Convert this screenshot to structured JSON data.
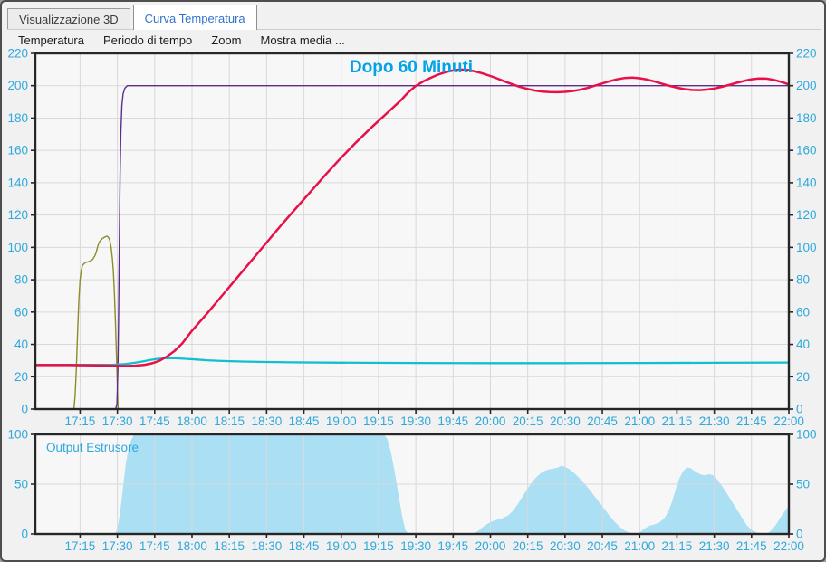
{
  "tabs": [
    {
      "label": "Visualizzazione 3D",
      "active": false
    },
    {
      "label": "Curva Temperatura",
      "active": true,
      "text_color": "#3272CE"
    }
  ],
  "menu": {
    "items": [
      "Temperatura",
      "Periodo di tempo",
      "Zoom",
      "Mostra media ..."
    ]
  },
  "colors": {
    "window_bg": "#f1f1f1",
    "axis_label_cyan": "#2FA8DC",
    "title_cyan": "#00A3E6",
    "red_line": "#E81048",
    "purple_line": "#5C2D8E",
    "olive_line": "#8B8C2A",
    "cyan_line": "#12BFCE",
    "area_fill": "#AADFF4",
    "border": "#262626",
    "grid": "#d9d9d9",
    "plot_bg": "#f7f7f7"
  },
  "chart_data": [
    {
      "id": "temperature",
      "type": "line",
      "title": "Dopo 60 Minuti",
      "title_color": "#00A3E6",
      "plot_bg": "#f7f7f7",
      "grid_color": "#d9d9d9",
      "border_color": "#262626",
      "label_color": "#2FA8DC",
      "xlim_minutes": [
        -3,
        300
      ],
      "ylim": [
        0,
        220
      ],
      "y_ticks": [
        0,
        20,
        40,
        60,
        80,
        100,
        120,
        140,
        160,
        180,
        200,
        220
      ],
      "grid_y": [
        20,
        40,
        60,
        80,
        100,
        120,
        140,
        160,
        180,
        200
      ],
      "x_ticks": [
        [
          15,
          "17:15"
        ],
        [
          30,
          "17:30"
        ],
        [
          45,
          "17:45"
        ],
        [
          60,
          "18:00"
        ],
        [
          75,
          "18:15"
        ],
        [
          90,
          "18:30"
        ],
        [
          105,
          "18:45"
        ],
        [
          120,
          "19:00"
        ],
        [
          135,
          "19:15"
        ],
        [
          150,
          "19:30"
        ],
        [
          165,
          "19:45"
        ],
        [
          180,
          "20:00"
        ],
        [
          195,
          "20:15"
        ],
        [
          210,
          "20:30"
        ],
        [
          225,
          "20:45"
        ],
        [
          240,
          "21:00"
        ],
        [
          255,
          "21:15"
        ],
        [
          270,
          "21:30"
        ],
        [
          285,
          "21:45"
        ],
        [
          300,
          "22:00"
        ]
      ],
      "series": [
        {
          "name": "startup_spike_olive",
          "color": "#8B8C2A",
          "width": 1.4,
          "points": [
            [
              12.5,
              0
            ],
            [
              13,
              8
            ],
            [
              13.5,
              25
            ],
            [
              14,
              48
            ],
            [
              14.5,
              68
            ],
            [
              15,
              80
            ],
            [
              15.5,
              86
            ],
            [
              16,
              89
            ],
            [
              17,
              90.5
            ],
            [
              18,
              91
            ],
            [
              19,
              91.5
            ],
            [
              20,
              92.5
            ],
            [
              21,
              95
            ],
            [
              21.5,
              97
            ],
            [
              22,
              100
            ],
            [
              22.5,
              102.5
            ],
            [
              23,
              104
            ],
            [
              24,
              105.5
            ],
            [
              25,
              106.5
            ],
            [
              25.8,
              107
            ],
            [
              26.5,
              106
            ],
            [
              27,
              104
            ],
            [
              27.5,
              100
            ],
            [
              28,
              93
            ],
            [
              28.4,
              85
            ],
            [
              28.8,
              72
            ],
            [
              29.2,
              55
            ],
            [
              29.6,
              35
            ],
            [
              30,
              14
            ],
            [
              30.3,
              0
            ]
          ]
        },
        {
          "name": "setpoint_purple",
          "color": "#5C2D8E",
          "width": 1.4,
          "points": [
            [
              -3,
              0
            ],
            [
              29.3,
              0
            ],
            [
              29.8,
              3
            ],
            [
              30.2,
              25
            ],
            [
              30.5,
              60
            ],
            [
              30.8,
              105
            ],
            [
              31.1,
              145
            ],
            [
              31.4,
              172
            ],
            [
              31.8,
              188
            ],
            [
              32.3,
              195
            ],
            [
              33,
              198.5
            ],
            [
              34,
              200
            ],
            [
              300,
              200
            ]
          ]
        },
        {
          "name": "ambient_cyan",
          "color": "#12BFCE",
          "width": 2.3,
          "points": [
            [
              -3,
              27.3
            ],
            [
              10,
              27.3
            ],
            [
              20,
              27.3
            ],
            [
              28,
              27.4
            ],
            [
              33,
              27.8
            ],
            [
              37,
              28.6
            ],
            [
              40,
              29.4
            ],
            [
              43,
              30.3
            ],
            [
              46,
              31
            ],
            [
              49,
              31.4
            ],
            [
              52,
              31.5
            ],
            [
              55,
              31.3
            ],
            [
              58,
              31
            ],
            [
              62,
              30.6
            ],
            [
              66,
              30.2
            ],
            [
              70,
              29.9
            ],
            [
              75,
              29.6
            ],
            [
              80,
              29.4
            ],
            [
              90,
              29.1
            ],
            [
              100,
              28.9
            ],
            [
              115,
              28.7
            ],
            [
              130,
              28.6
            ],
            [
              150,
              28.5
            ],
            [
              180,
              28.4
            ],
            [
              210,
              28.4
            ],
            [
              240,
              28.5
            ],
            [
              270,
              28.6
            ],
            [
              300,
              28.8
            ]
          ]
        },
        {
          "name": "temperature_red",
          "color": "#E81048",
          "width": 2.5,
          "points": [
            [
              -3,
              27.2
            ],
            [
              10,
              27.2
            ],
            [
              20,
              27
            ],
            [
              28,
              26.8
            ],
            [
              33,
              26.6
            ],
            [
              37,
              26.8
            ],
            [
              41,
              27.4
            ],
            [
              44,
              28.3
            ],
            [
              47,
              29.9
            ],
            [
              50,
              32.5
            ],
            [
              53,
              36
            ],
            [
              56,
              40.5
            ],
            [
              60,
              48.5
            ],
            [
              66,
              59
            ],
            [
              72,
              70
            ],
            [
              78,
              81
            ],
            [
              84,
              92
            ],
            [
              90,
              103
            ],
            [
              96,
              114
            ],
            [
              102,
              124.5
            ],
            [
              108,
              135
            ],
            [
              114,
              145.5
            ],
            [
              120,
              155.5
            ],
            [
              126,
              165
            ],
            [
              132,
              174
            ],
            [
              138,
              182.5
            ],
            [
              144,
              191
            ],
            [
              147,
              196
            ],
            [
              150,
              199.9
            ],
            [
              153,
              202.7
            ],
            [
              156,
              204.9
            ],
            [
              159,
              206.9
            ],
            [
              162,
              208.4
            ],
            [
              165,
              209.4
            ],
            [
              168,
              210
            ],
            [
              171,
              209.7
            ],
            [
              174,
              208.8
            ],
            [
              177,
              207.5
            ],
            [
              180,
              206
            ],
            [
              183,
              204.3
            ],
            [
              186,
              202.5
            ],
            [
              189,
              200.8
            ],
            [
              192,
              199.2
            ],
            [
              195,
              198
            ],
            [
              198,
              197
            ],
            [
              201,
              196.4
            ],
            [
              204,
              196.1
            ],
            [
              207,
              196
            ],
            [
              210,
              196.2
            ],
            [
              213,
              196.7
            ],
            [
              216,
              197.5
            ],
            [
              219,
              198.6
            ],
            [
              222,
              200
            ],
            [
              225,
              201.4
            ],
            [
              228,
              202.8
            ],
            [
              231,
              204
            ],
            [
              234,
              204.8
            ],
            [
              237,
              205
            ],
            [
              240,
              204.6
            ],
            [
              243,
              203.8
            ],
            [
              246,
              202.6
            ],
            [
              249,
              201.2
            ],
            [
              252,
              199.9
            ],
            [
              255,
              198.8
            ],
            [
              258,
              197.9
            ],
            [
              261,
              197.4
            ],
            [
              264,
              197.3
            ],
            [
              267,
              197.6
            ],
            [
              270,
              198.3
            ],
            [
              273,
              199.3
            ],
            [
              276,
              200.5
            ],
            [
              279,
              201.8
            ],
            [
              282,
              203
            ],
            [
              285,
              204
            ],
            [
              288,
              204.5
            ],
            [
              291,
              204.4
            ],
            [
              294,
              203.6
            ],
            [
              297,
              202.3
            ],
            [
              300,
              200.8
            ]
          ]
        }
      ]
    },
    {
      "id": "extruder_output",
      "type": "area",
      "label": "Output Estrusore",
      "fill": "#AADFF4",
      "plot_bg": "#f7f7f7",
      "grid_color": "#d9d9d9",
      "border_color": "#262626",
      "label_color": "#2FA8DC",
      "xlim_minutes": [
        -3,
        300
      ],
      "ylim": [
        0,
        100
      ],
      "y_ticks": [
        0,
        50,
        100
      ],
      "grid_y": [
        50
      ],
      "x_ticks": [
        [
          15,
          "17:15"
        ],
        [
          30,
          "17:30"
        ],
        [
          45,
          "17:45"
        ],
        [
          60,
          "18:00"
        ],
        [
          75,
          "18:15"
        ],
        [
          90,
          "18:30"
        ],
        [
          105,
          "18:45"
        ],
        [
          120,
          "19:00"
        ],
        [
          135,
          "19:15"
        ],
        [
          150,
          "19:30"
        ],
        [
          165,
          "19:45"
        ],
        [
          180,
          "20:00"
        ],
        [
          195,
          "20:15"
        ],
        [
          210,
          "20:30"
        ],
        [
          225,
          "20:45"
        ],
        [
          240,
          "21:00"
        ],
        [
          255,
          "21:15"
        ],
        [
          270,
          "21:30"
        ],
        [
          285,
          "21:45"
        ],
        [
          300,
          "22:00"
        ]
      ],
      "points": [
        [
          -3,
          0
        ],
        [
          28.5,
          0
        ],
        [
          29.5,
          2
        ],
        [
          30.5,
          12
        ],
        [
          31.5,
          30
        ],
        [
          32.5,
          52
        ],
        [
          33.5,
          72
        ],
        [
          34.5,
          85
        ],
        [
          35.5,
          94
        ],
        [
          36.5,
          99
        ],
        [
          37.5,
          100
        ],
        [
          137,
          100
        ],
        [
          138.5,
          96
        ],
        [
          140,
          82
        ],
        [
          141.5,
          62
        ],
        [
          143,
          40
        ],
        [
          144.5,
          18
        ],
        [
          145.8,
          4
        ],
        [
          147,
          0
        ],
        [
          173,
          0
        ],
        [
          175,
          3
        ],
        [
          177,
          7
        ],
        [
          179,
          10.5
        ],
        [
          181,
          13
        ],
        [
          183,
          14.5
        ],
        [
          185,
          16
        ],
        [
          187,
          18.5
        ],
        [
          189,
          23
        ],
        [
          191,
          30
        ],
        [
          193,
          38
        ],
        [
          195,
          46
        ],
        [
          197,
          53
        ],
        [
          199,
          58.5
        ],
        [
          201,
          62.5
        ],
        [
          203,
          64.5
        ],
        [
          205,
          65.5
        ],
        [
          207,
          66.5
        ],
        [
          208.5,
          68.5
        ],
        [
          210,
          67.5
        ],
        [
          212,
          64.5
        ],
        [
          214,
          60.5
        ],
        [
          216,
          55.5
        ],
        [
          218,
          50
        ],
        [
          220,
          44
        ],
        [
          222,
          37.5
        ],
        [
          224,
          31
        ],
        [
          226,
          24.5
        ],
        [
          228,
          18
        ],
        [
          230,
          12
        ],
        [
          232,
          7
        ],
        [
          234,
          3.5
        ],
        [
          236,
          1
        ],
        [
          238,
          0
        ],
        [
          240,
          1.5
        ],
        [
          242,
          5.5
        ],
        [
          244,
          8.5
        ],
        [
          246,
          9.5
        ],
        [
          248,
          11.5
        ],
        [
          250,
          16
        ],
        [
          251.5,
          22
        ],
        [
          253,
          32
        ],
        [
          254.5,
          45
        ],
        [
          256,
          56
        ],
        [
          257.5,
          63
        ],
        [
          259,
          67
        ],
        [
          260.5,
          66
        ],
        [
          262,
          63.5
        ],
        [
          263.5,
          61
        ],
        [
          265,
          59.3
        ],
        [
          266.5,
          59
        ],
        [
          268,
          60
        ],
        [
          269.5,
          59
        ],
        [
          271,
          55
        ],
        [
          273,
          48.5
        ],
        [
          275,
          41
        ],
        [
          277,
          33
        ],
        [
          279,
          25
        ],
        [
          281,
          17
        ],
        [
          283,
          9
        ],
        [
          285,
          4
        ],
        [
          287,
          1.5
        ],
        [
          289,
          0.5
        ],
        [
          290.5,
          0
        ],
        [
          292,
          1.5
        ],
        [
          293.5,
          5
        ],
        [
          295,
          10
        ],
        [
          296.5,
          16
        ],
        [
          298,
          21.5
        ],
        [
          299,
          25
        ],
        [
          300,
          27.5
        ]
      ]
    }
  ]
}
